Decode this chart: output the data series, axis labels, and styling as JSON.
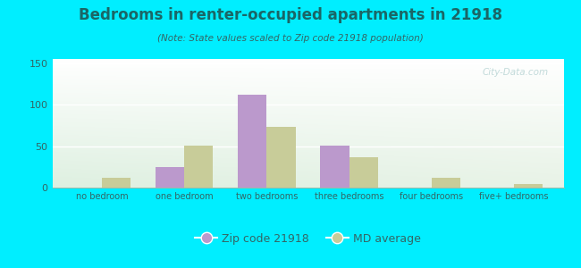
{
  "title": "Bedrooms in renter-occupied apartments in 21918",
  "subtitle": "(Note: State values scaled to Zip code 21918 population)",
  "categories": [
    "no bedroom",
    "one bedroom",
    "two bedrooms",
    "three bedrooms",
    "four bedrooms",
    "five+ bedrooms"
  ],
  "zip_values": [
    0,
    25,
    112,
    51,
    0,
    0
  ],
  "md_values": [
    12,
    51,
    73,
    37,
    12,
    4
  ],
  "zip_color": "#bb99cc",
  "md_color": "#c8cc99",
  "background_outer": "#00eeff",
  "ylim": [
    0,
    155
  ],
  "yticks": [
    0,
    50,
    100,
    150
  ],
  "bar_width": 0.35,
  "legend_zip_label": "Zip code 21918",
  "legend_md_label": "MD average",
  "watermark": "City-Data.com",
  "title_color": "#1a6666",
  "subtitle_color": "#336666",
  "tick_color": "#336666"
}
